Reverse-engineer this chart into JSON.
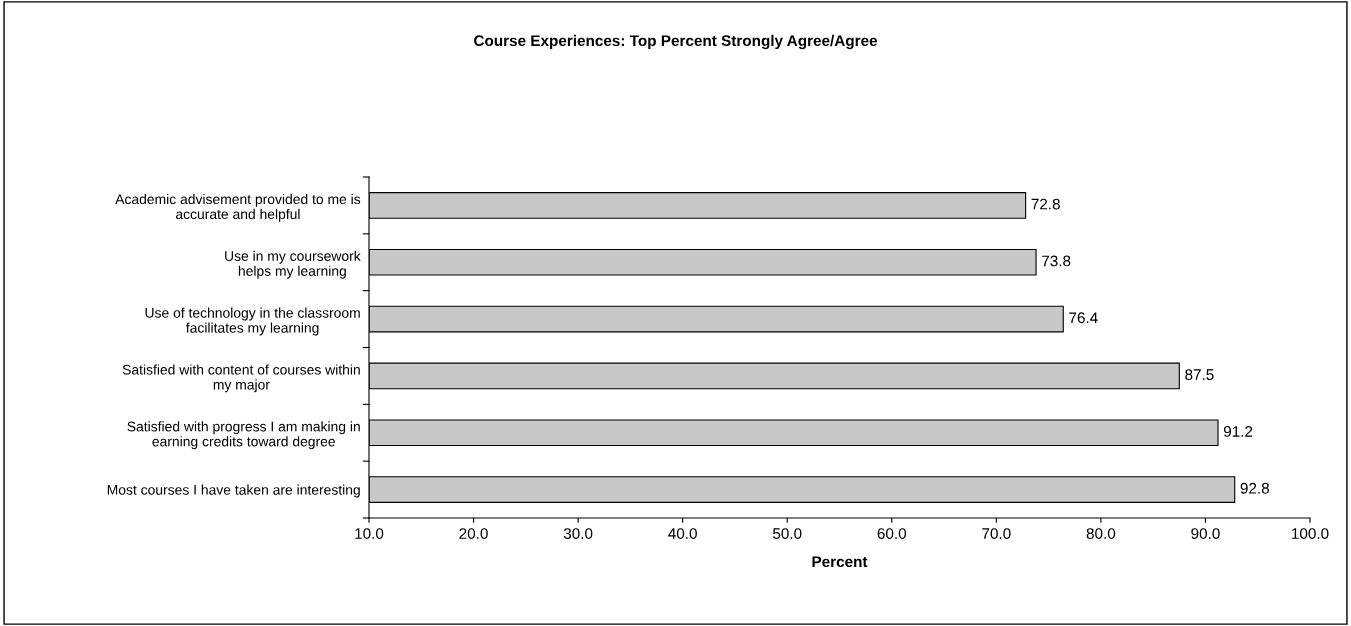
{
  "chart_data": {
    "type": "bar",
    "orientation": "horizontal",
    "title": "Course Experiences: Top Percent Strongly Agree/Agree",
    "xlabel": "Percent",
    "categories": [
      "Academic advisement provided to me is\naccurate and helpful",
      "Use in my coursework\nhelps my learning",
      "Use of technology in the classroom\nfacilitates my learning",
      "Satisfied with content of courses within\nmy major",
      "Satisfied with progress I am making in\nearning credits toward degree",
      "Most courses I have taken are interesting"
    ],
    "values": [
      72.8,
      73.8,
      76.4,
      87.5,
      91.2,
      92.8
    ],
    "color": "#c8c8c8",
    "data_labels": true,
    "xlim": [
      10,
      100
    ],
    "xticks": [
      {
        "value": 10,
        "label": "10.0"
      },
      {
        "value": 20,
        "label": "20.0"
      },
      {
        "value": 30,
        "label": "30.0"
      },
      {
        "value": 40,
        "label": "40.0"
      },
      {
        "value": 50,
        "label": "50.0"
      },
      {
        "value": 60,
        "label": "60.0"
      },
      {
        "value": 70,
        "label": "70.0"
      },
      {
        "value": 80,
        "label": "80.0"
      },
      {
        "value": 90,
        "label": "90.0"
      },
      {
        "value": 100,
        "label": "100.0"
      }
    ],
    "grid": false,
    "legend": false
  }
}
